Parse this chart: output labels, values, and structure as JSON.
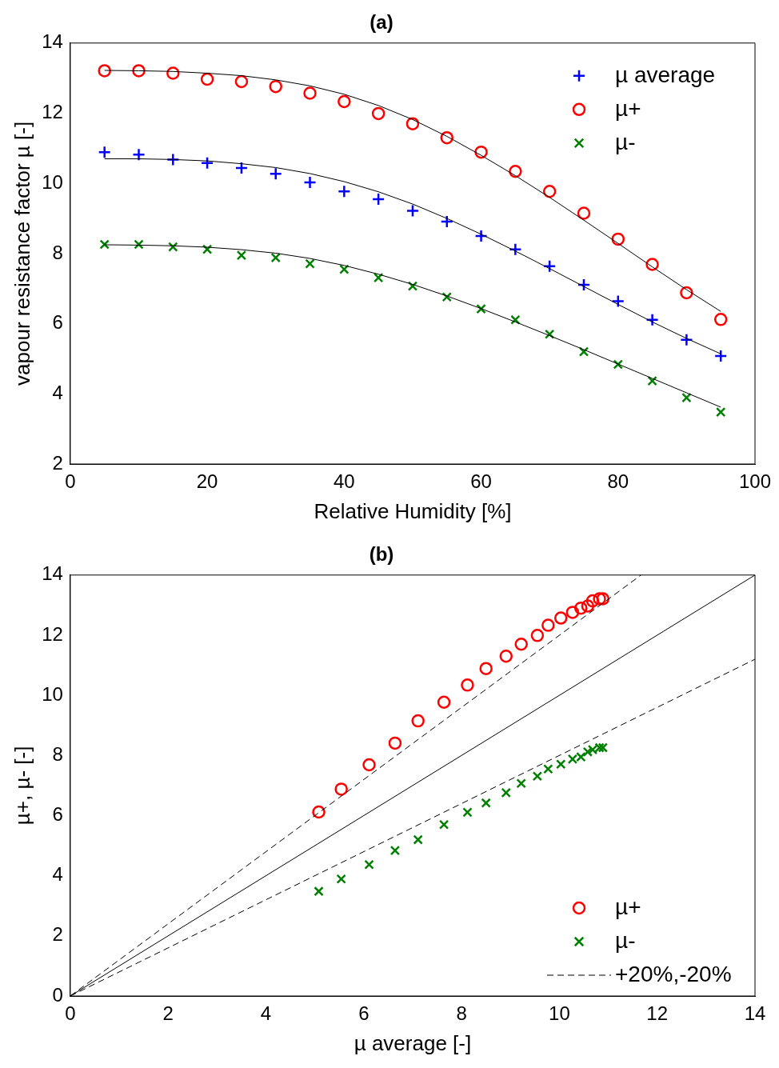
{
  "chart_data": [
    {
      "type": "scatter",
      "title": "(a)",
      "xlabel": "Relative Humidity [%]",
      "ylabel": "vapour resistance factor µ [-]",
      "xlim": [
        0,
        100
      ],
      "xticks": [
        0,
        20,
        40,
        60,
        80,
        100
      ],
      "ylim": [
        2,
        14
      ],
      "yticks": [
        2,
        4,
        6,
        8,
        10,
        12,
        14
      ],
      "grid": false,
      "legend": "top right",
      "x": [
        5,
        10,
        15,
        20,
        25,
        30,
        35,
        40,
        45,
        50,
        55,
        60,
        65,
        70,
        75,
        80,
        85,
        90,
        95
      ],
      "series": [
        {
          "name": "µ average",
          "color": "#0000ff",
          "marker": "cross",
          "values": [
            10.89,
            10.82,
            10.68,
            10.58,
            10.44,
            10.27,
            10.03,
            9.77,
            9.55,
            9.22,
            8.91,
            8.5,
            8.12,
            7.64,
            7.11,
            6.64,
            6.11,
            5.54,
            5.08
          ]
        },
        {
          "name": "µ+",
          "color": "#ff0000",
          "marker": "circle",
          "values": [
            13.21,
            13.21,
            13.14,
            12.97,
            12.9,
            12.76,
            12.57,
            12.33,
            11.99,
            11.7,
            11.3,
            10.89,
            10.34,
            9.77,
            9.15,
            8.41,
            7.69,
            6.88,
            6.12
          ]
        },
        {
          "name": "µ-",
          "color": "#008000",
          "marker": "x",
          "values": [
            8.26,
            8.26,
            8.19,
            8.12,
            7.95,
            7.88,
            7.71,
            7.55,
            7.31,
            7.07,
            6.76,
            6.42,
            6.11,
            5.7,
            5.2,
            4.84,
            4.37,
            3.89,
            3.48
          ]
        },
        {
          "type": "line",
          "color": "#000000",
          "marker": "none",
          "line_style": "solid",
          "values": [
            10.7,
            10.7,
            10.68,
            10.64,
            10.56,
            10.45,
            10.28,
            10.05,
            9.76,
            9.41,
            9.0,
            8.55,
            8.07,
            7.57,
            7.06,
            6.55,
            6.05,
            5.58,
            5.14
          ]
        },
        {
          "type": "line",
          "color": "#000000",
          "marker": "none",
          "line_style": "solid",
          "values": [
            13.22,
            13.21,
            13.19,
            13.14,
            13.07,
            12.95,
            12.78,
            12.54,
            12.22,
            11.82,
            11.34,
            10.8,
            10.22,
            9.6,
            8.95,
            8.29,
            7.62,
            6.97,
            6.35
          ]
        },
        {
          "type": "line",
          "color": "#000000",
          "marker": "none",
          "line_style": "solid",
          "values": [
            8.25,
            8.24,
            8.22,
            8.18,
            8.11,
            8.01,
            7.86,
            7.66,
            7.41,
            7.12,
            6.79,
            6.43,
            6.05,
            5.66,
            5.26,
            4.85,
            4.44,
            4.03,
            3.62
          ]
        }
      ]
    },
    {
      "type": "scatter",
      "title": "(b)",
      "xlabel": "µ average [-]",
      "ylabel": "µ+, µ- [-]",
      "xlim": [
        0,
        14
      ],
      "xticks": [
        0,
        2,
        4,
        6,
        8,
        10,
        12,
        14
      ],
      "ylim": [
        0,
        14
      ],
      "yticks": [
        0,
        2,
        4,
        6,
        8,
        10,
        12,
        14
      ],
      "grid": false,
      "legend": "bottom right",
      "x": [
        10.89,
        10.82,
        10.68,
        10.58,
        10.44,
        10.27,
        10.03,
        9.77,
        9.55,
        9.22,
        8.91,
        8.5,
        8.12,
        7.64,
        7.11,
        6.64,
        6.11,
        5.54,
        5.08
      ],
      "series": [
        {
          "name": "µ+",
          "color": "#ff0000",
          "marker": "circle",
          "values": [
            13.21,
            13.21,
            13.14,
            12.97,
            12.9,
            12.76,
            12.57,
            12.33,
            11.99,
            11.7,
            11.3,
            10.89,
            10.34,
            9.77,
            9.15,
            8.41,
            7.69,
            6.88,
            6.12
          ]
        },
        {
          "name": "µ-",
          "color": "#008000",
          "marker": "x",
          "values": [
            8.26,
            8.26,
            8.19,
            8.12,
            7.95,
            7.88,
            7.71,
            7.55,
            7.31,
            7.07,
            6.76,
            6.42,
            6.11,
            5.7,
            5.2,
            4.84,
            4.37,
            3.89,
            3.48
          ]
        },
        {
          "type": "line",
          "name": "+20%,-20%",
          "color": "#000000",
          "marker": "none",
          "line_style": "dashed",
          "x": [
            0,
            11.67
          ],
          "values": [
            0,
            14
          ]
        },
        {
          "type": "line",
          "color": "#000000",
          "marker": "none",
          "line_style": "dashed",
          "x": [
            0,
            14
          ],
          "values": [
            0,
            11.2
          ]
        },
        {
          "type": "line",
          "color": "#000000",
          "marker": "none",
          "line_style": "solid",
          "x": [
            0,
            14
          ],
          "values": [
            0,
            14
          ]
        }
      ]
    }
  ]
}
